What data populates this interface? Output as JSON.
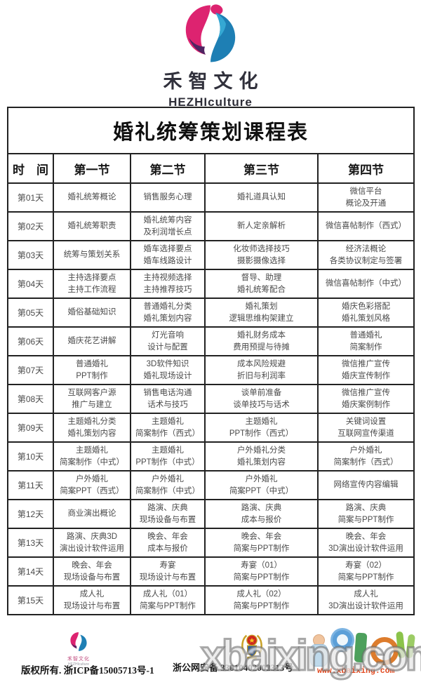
{
  "brand": {
    "title": "禾智文化",
    "subtitle": "HEZHIculture"
  },
  "colors": {
    "logo_pink": "#dd2370",
    "logo_purple": "#4f2462",
    "logo_blue": "#1e7fb4",
    "logo_blue_light": "#35a8d3",
    "url_red": "#e2491f",
    "border_black": "#222222"
  },
  "table": {
    "title": "婚礼统筹策划课程表",
    "headers": [
      "时　间",
      "第一节",
      "第二节",
      "第三节",
      "第四节"
    ],
    "rows": [
      {
        "day": "第01天",
        "cells": [
          "婚礼统筹概论",
          "销售服务心理",
          "婚礼道具认知",
          "微信平台\n概论及开通"
        ]
      },
      {
        "day": "第02天",
        "cells": [
          "婚礼统筹职责",
          "婚礼统筹内容\n及利润增长点",
          "新人定亲解析",
          "微信喜帖制作（西式）"
        ]
      },
      {
        "day": "第03天",
        "cells": [
          "统筹与策划关系",
          "婚车选择要点\n婚车线路设计",
          "化妆师选择技巧\n摄影摄像选择",
          "经济法概论\n各类协议制定与签署"
        ]
      },
      {
        "day": "第04天",
        "cells": [
          "主持选择要点\n主持工作流程",
          "主持视频选择\n主持推荐技巧",
          "督导、助理\n婚礼统筹配合",
          "微信喜帖制作（中式）"
        ]
      },
      {
        "day": "第05天",
        "cells": [
          "婚俗基础知识",
          "普通婚礼分类\n婚礼策划内容",
          "婚礼策划\n逻辑思维构架建立",
          "婚庆色彩搭配\n婚礼策划风格"
        ]
      },
      {
        "day": "第06天",
        "cells": [
          "婚庆花艺讲解",
          "灯光音响\n设计与配置",
          "婚礼财务成本\n费用预提与待摊",
          "普通婚礼\n简案制作"
        ]
      },
      {
        "day": "第07天",
        "cells": [
          "普通婚礼\nPPT制作",
          "3D软件知识\n婚礼现场设计",
          "成本风险规避\n折旧与利润率",
          "微信推广宣传\n婚庆宣传制作"
        ]
      },
      {
        "day": "第08天",
        "cells": [
          "互联网客户源\n推广与建立",
          "销售电话沟通\n话术与技巧",
          "谈单前准备\n谈单技巧与话术",
          "微信推广宣传\n婚庆案例制作"
        ]
      },
      {
        "day": "第09天",
        "cells": [
          "主题婚礼分类\n婚礼策划内容",
          "主题婚礼\n简案制作（西式）",
          "主题婚礼\nPPT制作（西式）",
          "关键词设置\n互联网宣传渠道"
        ]
      },
      {
        "day": "第10天",
        "cells": [
          "主题婚礼\n简案制作（中式）",
          "主题婚礼\nPPT制作（中式）",
          "户外婚礼分类\n婚礼策划内容",
          "户外婚礼\n简案制作（西式）"
        ]
      },
      {
        "day": "第11天",
        "cells": [
          "户外婚礼\n简案PPT（西式）",
          "户外婚礼\n简案制作（中式）",
          "户外婚礼\n简案PPT（中式）",
          "网络宣传内容编辑"
        ]
      },
      {
        "day": "第12天",
        "cells": [
          "商业演出概论",
          "路演、庆典\n现场设备与布置",
          "路演、庆典\n成本与报价",
          "路演、庆典\n简案与PPT制作"
        ]
      },
      {
        "day": "第13天",
        "cells": [
          "路演、庆典3D\n演出设计软件运用",
          "晚会、年会\n成本与报价",
          "晚会、年会\n简案与PPT制作",
          "晚会、年会\n3D演出设计软件运用"
        ]
      },
      {
        "day": "第14天",
        "cells": [
          "晚会、年会\n现场设备与布置",
          "寿宴\n现场设计与布置",
          "寿宴（01）\n简案与PPT制作",
          "寿宴（02）\n简案与PPT制作"
        ]
      },
      {
        "day": "第15天",
        "cells": [
          "成人礼\n现场设计与布置",
          "成人礼（01）\n简案与PPT制作",
          "成人礼（02）\n简案与PPT制作",
          "成人礼\n3D演出设计软件运用"
        ]
      }
    ]
  },
  "footer": {
    "logo_title": "禾智文化",
    "logo_subtitle": "HEZHIculture",
    "copyright": "版权所有. 浙ICP备15005713号-1",
    "security": "浙公网安备 33010402002313号",
    "website": "www.xbaixing.com",
    "watermark": "xbaixing.com"
  }
}
